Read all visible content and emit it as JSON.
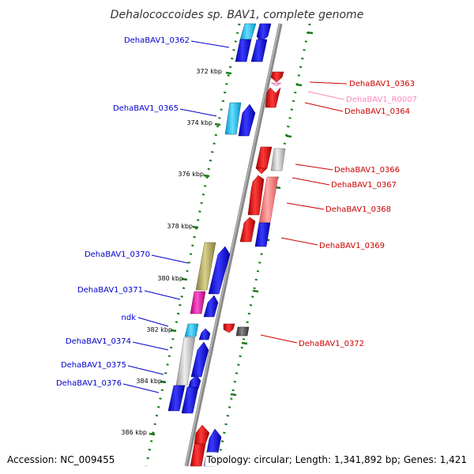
{
  "title": "Dehalococcoides sp. BAV1, complete genome",
  "footer": {
    "accession": "Accession: NC_009455",
    "topology": "Topology: circular; Length: 1,341,892 bp; Genes: 1,421"
  },
  "kbp_ticks": [
    "372 kbp",
    "374 kbp",
    "376 kbp",
    "378 kbp",
    "380 kbp",
    "382 kbp",
    "384 kbp",
    "386 kbp"
  ],
  "left_labels": [
    {
      "text": "DehaBAV1_0362",
      "color": "#0000cc"
    },
    {
      "text": "DehaBAV1_0365",
      "color": "#0000cc"
    },
    {
      "text": "DehaBAV1_0370",
      "color": "#0000cc"
    },
    {
      "text": "DehaBAV1_0371",
      "color": "#0000cc"
    },
    {
      "text": "ndk",
      "color": "#0000cc"
    },
    {
      "text": "DehaBAV1_0374",
      "color": "#0000cc"
    },
    {
      "text": "DehaBAV1_0375",
      "color": "#0000cc"
    },
    {
      "text": "DehaBAV1_0376",
      "color": "#0000cc"
    }
  ],
  "right_labels": [
    {
      "text": "DehaBAV1_0363",
      "color": "#cc0000"
    },
    {
      "text": "DehaBAV1_R0007",
      "color": "#ff88bb"
    },
    {
      "text": "DehaBAV1_0364",
      "color": "#cc0000"
    },
    {
      "text": "DehaBAV1_0366",
      "color": "#cc0000"
    },
    {
      "text": "DehaBAV1_0367",
      "color": "#cc0000"
    },
    {
      "text": "DehaBAV1_0368",
      "color": "#cc0000"
    },
    {
      "text": "DehaBAV1_0369",
      "color": "#cc0000"
    },
    {
      "text": "DehaBAV1_0372",
      "color": "#cc0000"
    }
  ],
  "colors": {
    "forward_gene": "#0000ee",
    "reverse_gene": "#ee0000",
    "axis": "#888888",
    "tick": "#1a7a1a"
  }
}
